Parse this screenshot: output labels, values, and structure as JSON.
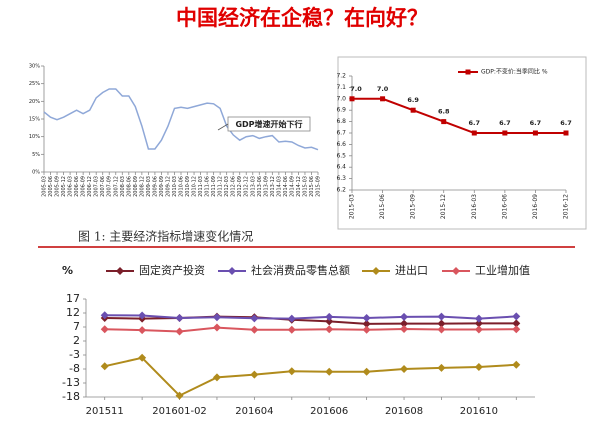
{
  "title": "中国经济在企稳？在向好？",
  "caption": "图 1:  主要经济指标增速变化情况",
  "chart_data": [
    {
      "type": "line",
      "color": "#8fa8d8",
      "annotation": "GDP增速开始下行",
      "categories": [
        "2005-03",
        "2005-06",
        "2005-09",
        "2005-12",
        "2006-03",
        "2006-06",
        "2006-09",
        "2006-12",
        "2007-03",
        "2007-06",
        "2007-09",
        "2007-12",
        "2008-03",
        "2008-06",
        "2008-09",
        "2008-12",
        "2009-03",
        "2009-06",
        "2009-09",
        "2009-12",
        "2010-03",
        "2010-06",
        "2010-09",
        "2010-12",
        "2011-03",
        "2011-06",
        "2011-09",
        "2011-12",
        "2012-03",
        "2012-06",
        "2012-09",
        "2012-12",
        "2013-03",
        "2013-06",
        "2013-09",
        "2013-12",
        "2014-03",
        "2014-06",
        "2014-09",
        "2014-12",
        "2015-03",
        "2015-06",
        "2015-09"
      ],
      "values": [
        17,
        15.5,
        14.8,
        15.5,
        16.5,
        17.5,
        16.5,
        17.5,
        21,
        22.5,
        23.5,
        23.5,
        21.5,
        21.5,
        18.5,
        13,
        6.5,
        6.5,
        9,
        13,
        18,
        18.3,
        18,
        18.5,
        19,
        19.5,
        19.3,
        18,
        13,
        10.5,
        9,
        10,
        10.3,
        9.5,
        10,
        10.3,
        8.5,
        8.7,
        8.5,
        7.5,
        6.8,
        7,
        6.3
      ],
      "ylim": [
        0,
        30
      ],
      "yticks": [
        {
          "value": 0,
          "label": "0%"
        },
        {
          "value": 5,
          "label": "5%"
        },
        {
          "value": 10,
          "label": "10%"
        },
        {
          "value": 15,
          "label": "15%"
        },
        {
          "value": 20,
          "label": "20%"
        },
        {
          "value": 25,
          "label": "25%"
        },
        {
          "value": 30,
          "label": "30%"
        }
      ]
    },
    {
      "type": "line",
      "color": "#c00000",
      "series_name": "GDP:不变价:当季同比 %",
      "categories": [
        "2015-03",
        "2015-06",
        "2015-09",
        "2015-12",
        "2016-03",
        "2016-06",
        "2016-09",
        "2016-12"
      ],
      "values": [
        7,
        7,
        6.9,
        6.8,
        6.7,
        6.7,
        6.7,
        6.7
      ],
      "value_labels": [
        "7.0",
        "7.0",
        "6.9",
        "6.8",
        "6.7",
        "6.7",
        "6.7",
        "6.7"
      ],
      "ylim": [
        6.2,
        7.2
      ],
      "yticks": [
        6.2,
        6.3,
        6.4,
        6.5,
        6.6,
        6.7,
        6.8,
        6.9,
        {
          "value": 7,
          "label": "7.0"
        },
        7.1,
        7.2
      ]
    },
    {
      "type": "line",
      "y_label": "%",
      "categories": [
        "201511",
        null,
        "201601-02",
        null,
        "201604",
        null,
        "201606",
        null,
        "201608",
        null,
        "201610",
        null
      ],
      "series": [
        {
          "name": "固定资产投资",
          "color": "#7b1f2a",
          "values": [
            10.2,
            10.0,
            10.2,
            10.7,
            10.5,
            9.6,
            9.0,
            8.1,
            8.2,
            8.2,
            8.3,
            8.3
          ]
        },
        {
          "name": "社会消费品零售总额",
          "color": "#6a4fb0",
          "values": [
            11.2,
            11.1,
            10.2,
            10.5,
            10.1,
            10.0,
            10.6,
            10.2,
            10.6,
            10.7,
            10.0,
            10.8
          ]
        },
        {
          "name": "进出口",
          "color": "#b08b1c",
          "values": [
            -7,
            -4,
            -17.5,
            -11,
            -10,
            -8.8,
            -9,
            -9,
            -8,
            -7.6,
            -7.3,
            -6.5
          ]
        },
        {
          "name": "工业增加值",
          "color": "#d9565e",
          "values": [
            6.2,
            5.9,
            5.4,
            6.8,
            6.0,
            6.0,
            6.2,
            6.0,
            6.3,
            6.1,
            6.1,
            6.2
          ]
        }
      ],
      "ylim": [
        -18,
        17
      ],
      "yticks": [
        17,
        12,
        7,
        2,
        -3,
        -8,
        -13,
        -18
      ]
    }
  ]
}
